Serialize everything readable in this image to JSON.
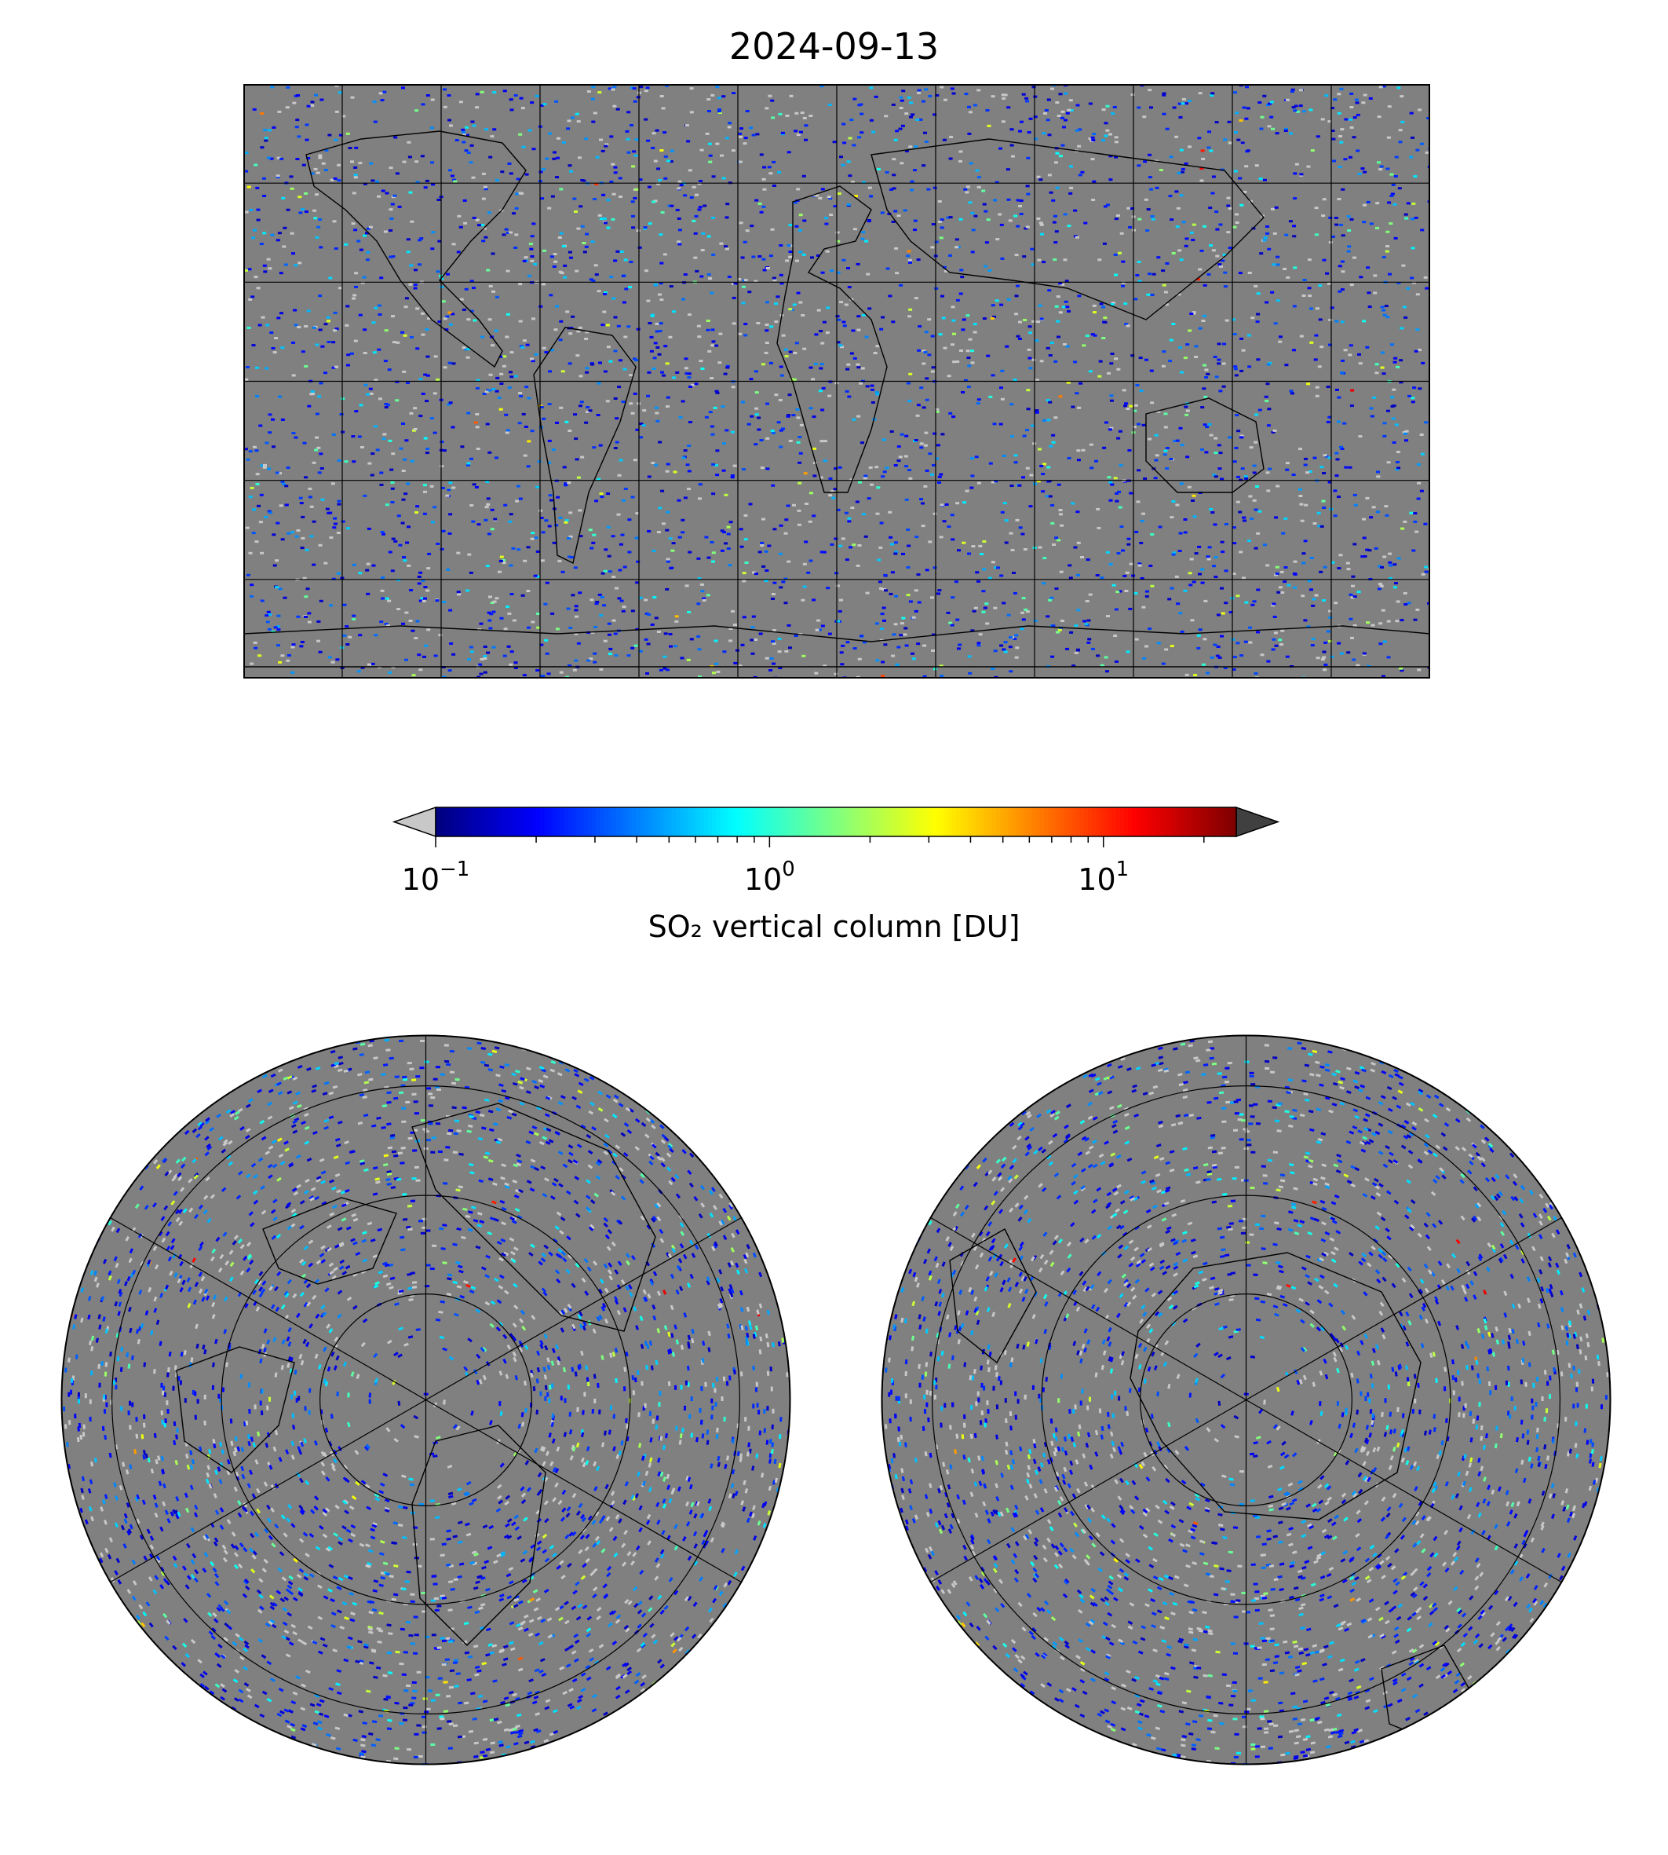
{
  "title": "2024-09-13",
  "colorbar": {
    "label": "SO₂ vertical column [DU]",
    "scale": "log",
    "range": [
      0.1,
      25
    ],
    "extend": "both",
    "colormap": "jet",
    "under_color": "#c8c8c8",
    "over_color": "#404040",
    "ticks": [
      {
        "base": "10",
        "exp": "−1",
        "value": 0.1
      },
      {
        "base": "10",
        "exp": "0",
        "value": 1
      },
      {
        "base": "10",
        "exp": "1",
        "value": 10
      }
    ]
  },
  "maps": {
    "background_color": "#808080",
    "world": {
      "projection": "plate-carree",
      "gridlines_lon_step_deg": 30,
      "gridlines_lat_step_deg": 30
    },
    "north_pole": {
      "projection": "north-polar-stereographic"
    },
    "south_pole": {
      "projection": "south-polar-stereographic"
    }
  }
}
